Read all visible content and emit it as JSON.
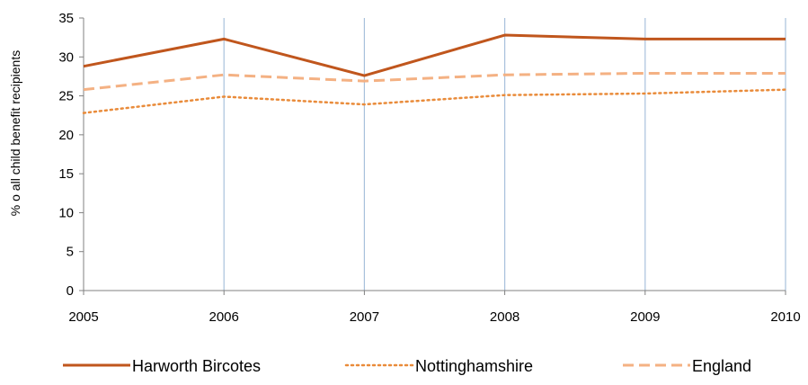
{
  "chart_data": {
    "type": "line",
    "title": "",
    "xlabel": "",
    "ylabel": "% o all child benefit recipients",
    "ylim": [
      0,
      35
    ],
    "y_ticks": [
      0,
      5,
      10,
      15,
      20,
      25,
      30,
      35
    ],
    "categories": [
      "2005",
      "2006",
      "2007",
      "2008",
      "2009",
      "2010"
    ],
    "grid": "vertical",
    "legend_position": "bottom",
    "series": [
      {
        "name": "Harworth Bircotes",
        "values": [
          28.8,
          32.3,
          27.6,
          32.8,
          32.3,
          32.3
        ],
        "color": "#c0561d",
        "style": "solid"
      },
      {
        "name": "Nottinghamshire",
        "values": [
          22.8,
          24.9,
          23.9,
          25.1,
          25.3,
          25.8
        ],
        "color": "#e98b3a",
        "style": "dotted"
      },
      {
        "name": "England",
        "values": [
          25.8,
          27.7,
          26.9,
          27.7,
          27.9,
          27.9
        ],
        "color": "#f4b183",
        "style": "dashed"
      }
    ]
  },
  "colors": {
    "gridline": "#a8c1dc",
    "axis": "#808080"
  }
}
